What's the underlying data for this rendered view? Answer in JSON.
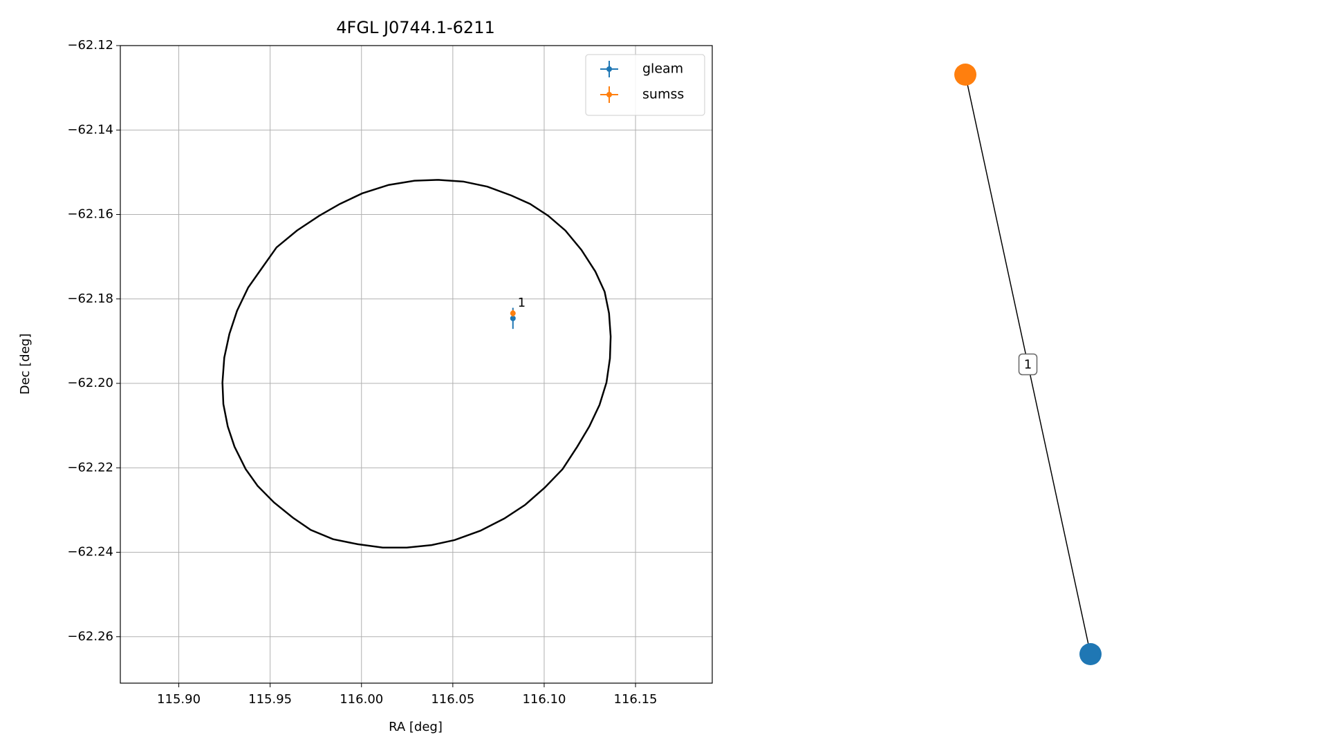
{
  "chart_data": [
    {
      "type": "scatter",
      "title": "4FGL J0744.1-6211",
      "x_label": "RA [deg]",
      "y_label": "Dec [deg]",
      "xlim": [
        115.868,
        116.192
      ],
      "ylim": [
        -62.271,
        -62.12
      ],
      "xticks": [
        {
          "value": 115.9,
          "label": "115.90"
        },
        {
          "value": 115.95,
          "label": "115.95"
        },
        {
          "value": 116.0,
          "label": "116.00"
        },
        {
          "value": 116.05,
          "label": "116.05"
        },
        {
          "value": 116.1,
          "label": "116.10"
        },
        {
          "value": 116.15,
          "label": "116.15"
        }
      ],
      "yticks": [
        {
          "value": -62.12,
          "label": "−62.12"
        },
        {
          "value": -62.14,
          "label": "−62.14"
        },
        {
          "value": -62.16,
          "label": "−62.16"
        },
        {
          "value": -62.18,
          "label": "−62.18"
        },
        {
          "value": -62.2,
          "label": "−62.20"
        },
        {
          "value": -62.22,
          "label": "−62.22"
        },
        {
          "value": -62.24,
          "label": "−62.24"
        },
        {
          "value": -62.26,
          "label": "−62.26"
        }
      ],
      "grid": true,
      "legend": "upper right",
      "series": [
        {
          "name": "gleam",
          "color": "#1f77b4",
          "x": [
            116.0829
          ],
          "values": [
            -62.1846
          ],
          "xerr": [
            0.0004
          ],
          "yerr": [
            0.0025
          ]
        },
        {
          "name": "sumss",
          "color": "#ff7f0e",
          "x": [
            116.0829
          ],
          "values": [
            -62.1834
          ],
          "xerr": [
            0.0003
          ],
          "yerr": [
            0.0008
          ]
        }
      ],
      "lines": [
        {
          "color": "#000000",
          "x": [
            116.042,
            116.0557,
            116.0689,
            116.082,
            116.0923,
            116.1022,
            116.1116,
            116.1204,
            116.128,
            116.1331,
            116.1355,
            116.1364,
            116.136,
            116.1341,
            116.1303,
            116.1247,
            116.1181,
            116.1101,
            116.1003,
            116.0895,
            116.0782,
            116.0651,
            116.051,
            116.0384,
            116.0248,
            116.0116,
            115.998,
            115.9844,
            115.9722,
            115.9624,
            115.9521,
            115.9432,
            115.9366,
            115.9305,
            115.9268,
            115.9244,
            115.9239,
            115.9249,
            115.9277,
            115.9319,
            115.938,
            115.9455,
            115.9535,
            115.9647,
            115.9769,
            115.9882,
            116.0004,
            116.0149,
            116.029,
            116.042
          ],
          "values": [
            -62.1518,
            -62.1522,
            -62.1534,
            -62.1555,
            -62.1575,
            -62.1603,
            -62.1638,
            -62.1684,
            -62.1735,
            -62.1783,
            -62.1834,
            -62.1889,
            -62.1941,
            -62.1998,
            -62.2051,
            -62.2102,
            -62.215,
            -62.2203,
            -62.2247,
            -62.2288,
            -62.232,
            -62.2349,
            -62.2371,
            -62.2383,
            -62.2389,
            -62.2389,
            -62.2381,
            -62.2369,
            -62.2347,
            -62.2318,
            -62.2282,
            -62.2243,
            -62.2203,
            -62.215,
            -62.2102,
            -62.2049,
            -62.1998,
            -62.1939,
            -62.1883,
            -62.1828,
            -62.1773,
            -62.1727,
            -62.1678,
            -62.1638,
            -62.1603,
            -62.1575,
            -62.155,
            -62.153,
            -62.152,
            -62.1518
          ]
        }
      ],
      "annotations": [
        {
          "text": "1",
          "x": 116.0855,
          "y": -62.181
        }
      ]
    },
    {
      "type": "graph",
      "nodes": [
        {
          "color": "#ff7f0e"
        },
        {
          "color": "#1f77b4"
        }
      ],
      "edges": [
        {
          "source": 0,
          "target": 1,
          "label": "1"
        }
      ]
    }
  ]
}
